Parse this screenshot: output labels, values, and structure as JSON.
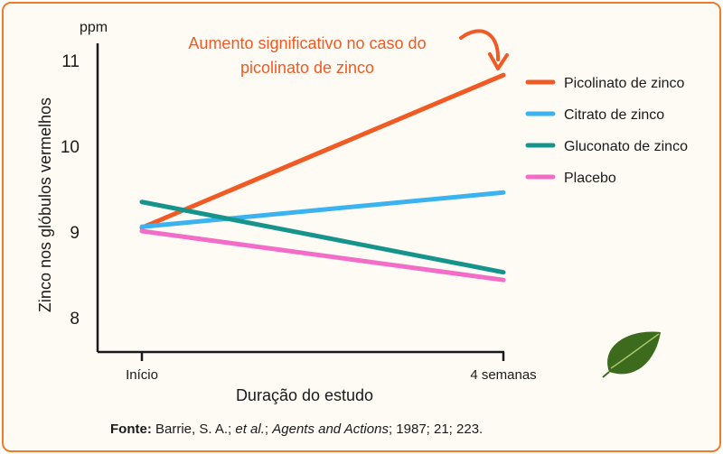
{
  "chart_data": {
    "type": "line",
    "x": [
      "Início",
      "4 semanas"
    ],
    "xlabel": "Duração do estudo",
    "ylabel": "Zinco nos glóbulos vermelhos",
    "yunit": "ppm",
    "ylim": [
      7.6,
      11.2
    ],
    "yticks": [
      8,
      9,
      10,
      11
    ],
    "series": [
      {
        "name": "Picolinato de zinco",
        "values": [
          9.05,
          10.83
        ],
        "color": "#f05a24"
      },
      {
        "name": "Citrato de zinco",
        "values": [
          9.06,
          9.46
        ],
        "color": "#3bb3f0"
      },
      {
        "name": "Gluconato de zinco",
        "values": [
          9.35,
          8.53
        ],
        "color": "#16948c"
      },
      {
        "name": "Placebo",
        "values": [
          9.01,
          8.44
        ],
        "color": "#f36cc8"
      }
    ],
    "annotation": {
      "lines": [
        "Aumento significativo no caso do",
        "picolinato de zinco"
      ]
    },
    "legend_position": "top-right",
    "grid": false
  },
  "source": {
    "label": "Fonte:",
    "authors": "Barrie, S. A.;",
    "etal": "et al.",
    "journal": "Agents and Actions",
    "rest": "; 1987; 21; 223."
  },
  "colors": {
    "border": "#f07a2c",
    "background": "#fdfbf4",
    "annotation": "#f05a24"
  },
  "decoration": "leaf-icon"
}
